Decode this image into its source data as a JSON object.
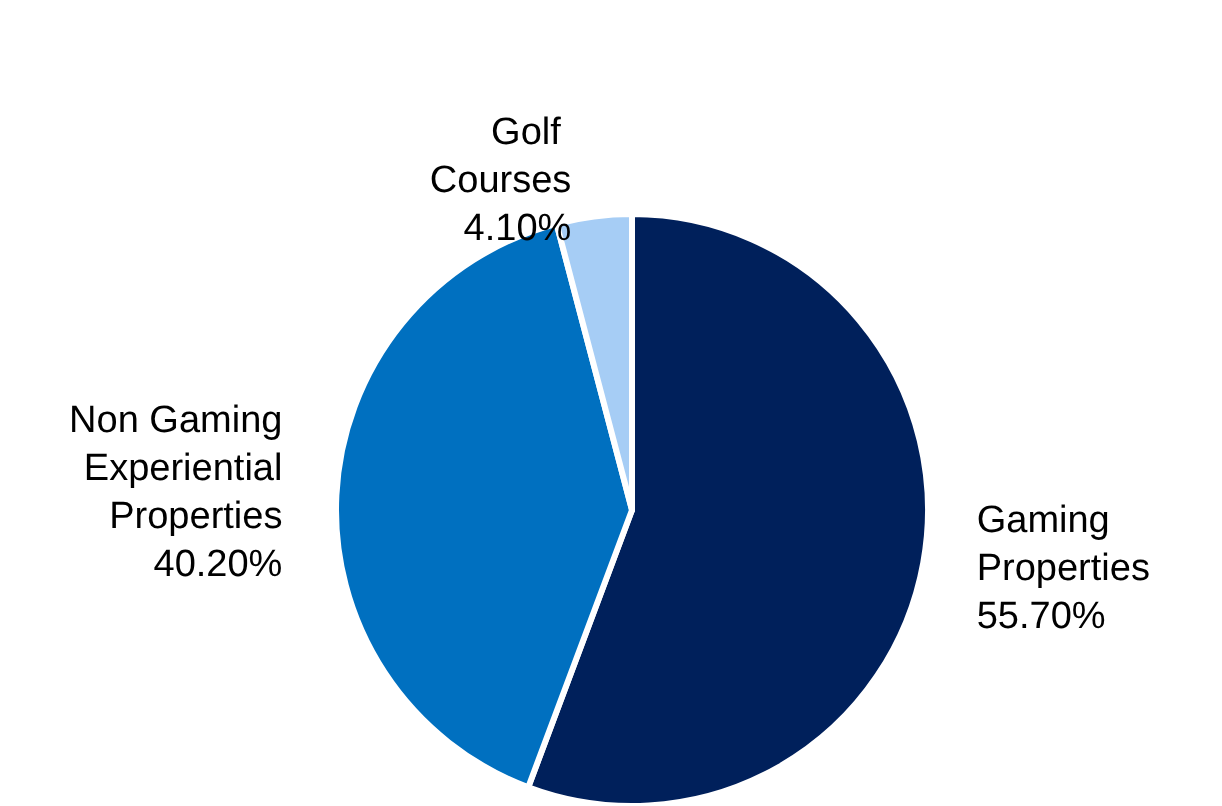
{
  "chart_data": {
    "type": "pie",
    "categories": [
      "Gaming Properties",
      "Non Gaming Experiential Properties",
      "Golf Courses"
    ],
    "values": [
      55.7,
      40.2,
      4.1
    ],
    "colors": [
      "#00205b",
      "#0070c0",
      "#a6cdf5"
    ],
    "value_labels": [
      "55.70%",
      "40.20%",
      "4.10%"
    ]
  }
}
